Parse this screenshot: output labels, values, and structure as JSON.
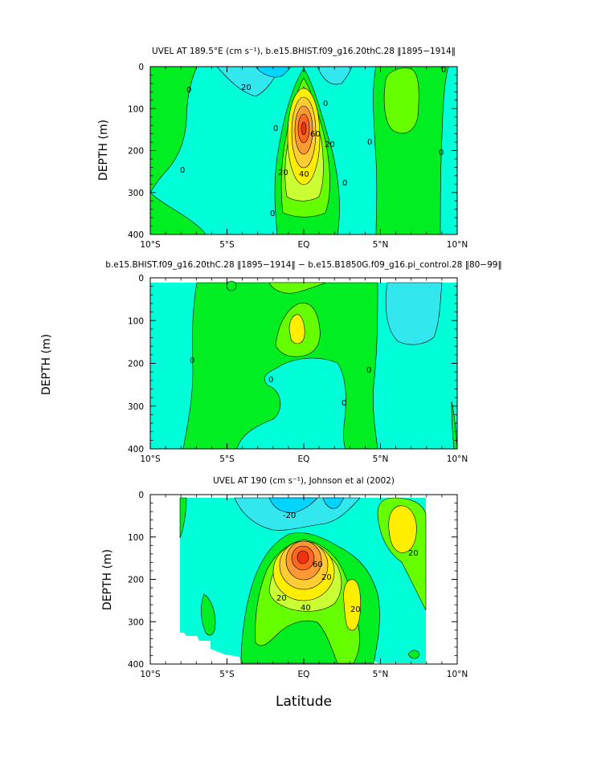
{
  "figure": {
    "shared_ylabel": "DEPTH (m)",
    "xlabel": "Latitude"
  },
  "colors": {
    "neg_30": "#00d4ff",
    "neg_20": "#33e7ee",
    "neg_10": "#00ffd8",
    "zero": "#33ff99",
    "pos_10": "#00ee22",
    "pos_20": "#66ff00",
    "pos_30": "#ccff33",
    "pos_40": "#ffee00",
    "pos_50": "#ffcc33",
    "pos_60": "#ff9933",
    "pos_70": "#ff6622",
    "pos_80": "#ee3311",
    "missing": "#ffffff"
  },
  "chart_data": [
    {
      "type": "heatmap",
      "title": "UVEL AT 189.5°E (cm s⁻¹), b.e15.BHIST.f09_g16.20thC.28 ‖1895−1914‖",
      "xlabel": "",
      "ylabel": "DEPTH (m)",
      "xlim": [
        -10,
        10
      ],
      "ylim": [
        400,
        0
      ],
      "x_ticks": [
        "10°S",
        "5°S",
        "EQ",
        "5°N",
        "10°N"
      ],
      "y_ticks": [
        "0",
        "100",
        "200",
        "300",
        "400"
      ],
      "contour_interval": 10,
      "contour_labels": [
        "0",
        "20",
        "0",
        "0",
        "20",
        "40",
        "60",
        "20",
        "0",
        "0",
        "0",
        "0",
        "0",
        "0"
      ],
      "core": {
        "lat": 0,
        "depth": 160,
        "max": 80
      }
    },
    {
      "type": "heatmap",
      "title": "b.e15.BHIST.f09_g16.20thC.28 ‖1895−1914‖ − b.e15.B1850G.f09_g16.pi_control.28 ‖80−99‖",
      "xlabel": "",
      "ylabel": "",
      "xlim": [
        -10,
        10
      ],
      "ylim": [
        400,
        0
      ],
      "x_ticks": [
        "10°S",
        "5°S",
        "EQ",
        "5°N",
        "10°N"
      ],
      "y_ticks": [
        "0",
        "100",
        "200",
        "300",
        "400"
      ],
      "contour_labels": [
        "0",
        "0",
        "0",
        "0"
      ]
    },
    {
      "type": "heatmap",
      "title": "UVEL AT 190 (cm s⁻¹), Johnson et al (2002)",
      "xlabel": "Latitude",
      "ylabel": "DEPTH (m)",
      "xlim": [
        -10,
        10
      ],
      "ylim": [
        400,
        0
      ],
      "x_ticks": [
        "10°S",
        "5°S",
        "EQ",
        "5°N",
        "10°N"
      ],
      "y_ticks": [
        "0",
        "100",
        "200",
        "300",
        "400"
      ],
      "data_extent_lat": [
        -8,
        8
      ],
      "contour_labels": [
        "-20",
        "20",
        "20",
        "40",
        "60",
        "20",
        "20"
      ],
      "core": {
        "lat": 0,
        "depth": 150,
        "max": 80
      }
    }
  ]
}
